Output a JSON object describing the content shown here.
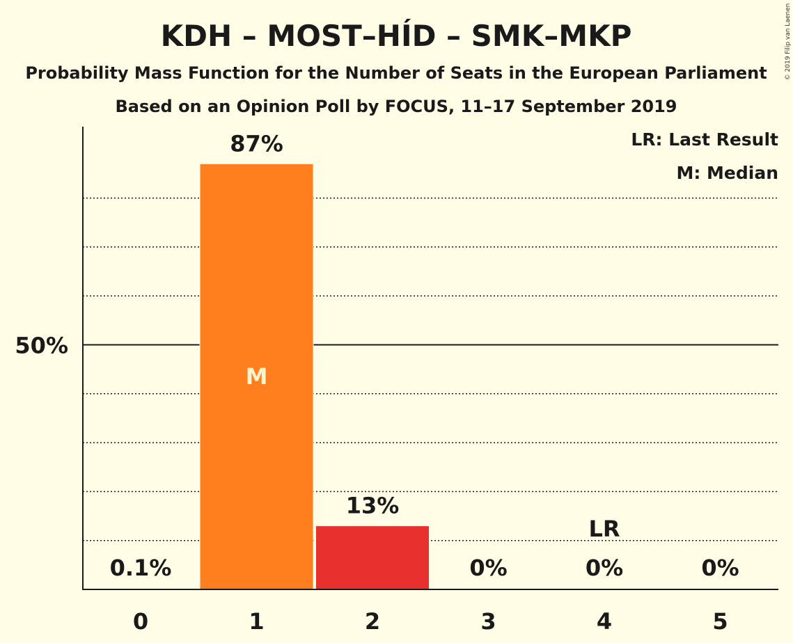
{
  "title": "KDH – MOST–HÍD – SMK–MKP",
  "subtitle1": "Probability Mass Function for the Number of Seats in the European Parliament",
  "subtitle2": "Based on an Opinion Poll by FOCUS, 11–17 September 2019",
  "copyright": "© 2019 Filip van Laenen",
  "legend": {
    "last_result": "LR: Last Result",
    "median": "M: Median"
  },
  "colors": {
    "background": "#fffde6",
    "median_bar": "#ff7f1e",
    "other_bar": "#e8312f",
    "axis": "#1a1a1a"
  },
  "chart_data": {
    "type": "bar",
    "categories": [
      "0",
      "1",
      "2",
      "3",
      "4",
      "5"
    ],
    "values": [
      0.1,
      87,
      13,
      0,
      0,
      0
    ],
    "data_labels": [
      "0.1%",
      "87%",
      "13%",
      "0%",
      "0%",
      "0%"
    ],
    "ylim": [
      0,
      95
    ],
    "ytick_label": "50%",
    "ytick_value": 50,
    "gridlines": [
      10,
      20,
      30,
      40,
      60,
      70,
      80
    ],
    "median_index": 1,
    "median_marker": "M",
    "last_result_index": 4,
    "last_result_marker": "LR"
  }
}
